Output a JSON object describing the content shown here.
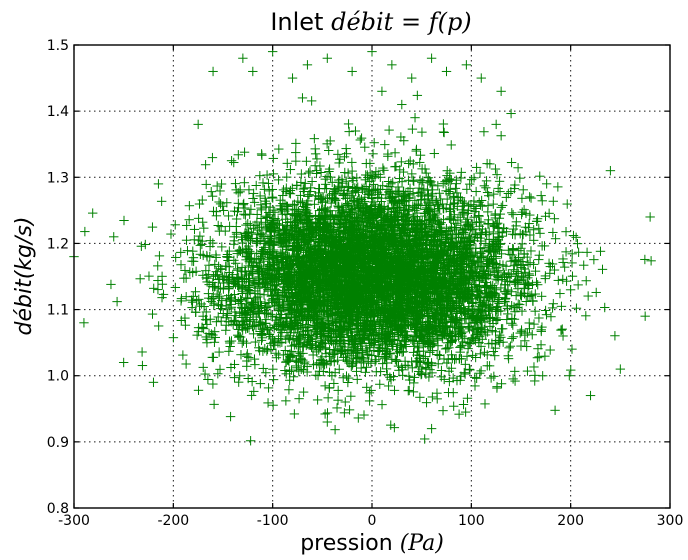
{
  "chart_data": {
    "type": "scatter",
    "title": {
      "prefix": "Inlet ",
      "formula": "débit = f(p)"
    },
    "xlabel": {
      "text": "pression ",
      "unit": "(Pa)"
    },
    "ylabel": "débit(kg/s)",
    "xlim": [
      -300,
      300
    ],
    "ylim": [
      0.8,
      1.5
    ],
    "xticks": [
      -300,
      -200,
      -100,
      0,
      100,
      200,
      300
    ],
    "yticks": [
      0.8,
      0.9,
      1.0,
      1.1,
      1.2,
      1.3,
      1.4,
      1.5
    ],
    "grid": true,
    "marker": "+",
    "color": "#008000",
    "series": [
      {
        "points_generated": {
          "count": 7000,
          "center_x": 0,
          "center_y": 1.15,
          "std_x": 75,
          "std_y": 0.07
        },
        "outlier_points": [
          [
            -160,
            1.46
          ],
          [
            -130,
            1.48
          ],
          [
            -120,
            1.46
          ],
          [
            -100,
            1.49
          ],
          [
            -80,
            1.45
          ],
          [
            -65,
            1.47
          ],
          [
            -45,
            1.48
          ],
          [
            -20,
            1.46
          ],
          [
            0,
            1.49
          ],
          [
            10,
            1.43
          ],
          [
            20,
            1.47
          ],
          [
            40,
            1.45
          ],
          [
            60,
            1.48
          ],
          [
            75,
            1.46
          ],
          [
            95,
            1.47
          ],
          [
            110,
            1.45
          ],
          [
            130,
            1.43
          ],
          [
            -70,
            1.42
          ],
          [
            30,
            1.41
          ],
          [
            -290,
            1.08
          ],
          [
            -300,
            1.18
          ],
          [
            280,
            1.24
          ],
          [
            275,
            1.09
          ],
          [
            250,
            1.01
          ],
          [
            -260,
            1.21
          ],
          [
            -250,
            1.02
          ],
          [
            -220,
            0.99
          ],
          [
            -215,
            1.29
          ],
          [
            240,
            1.31
          ],
          [
            220,
            0.97
          ],
          [
            -175,
            1.38
          ],
          [
            125,
            1.38
          ],
          [
            -45,
            0.93
          ],
          [
            60,
            0.92
          ]
        ]
      }
    ]
  }
}
